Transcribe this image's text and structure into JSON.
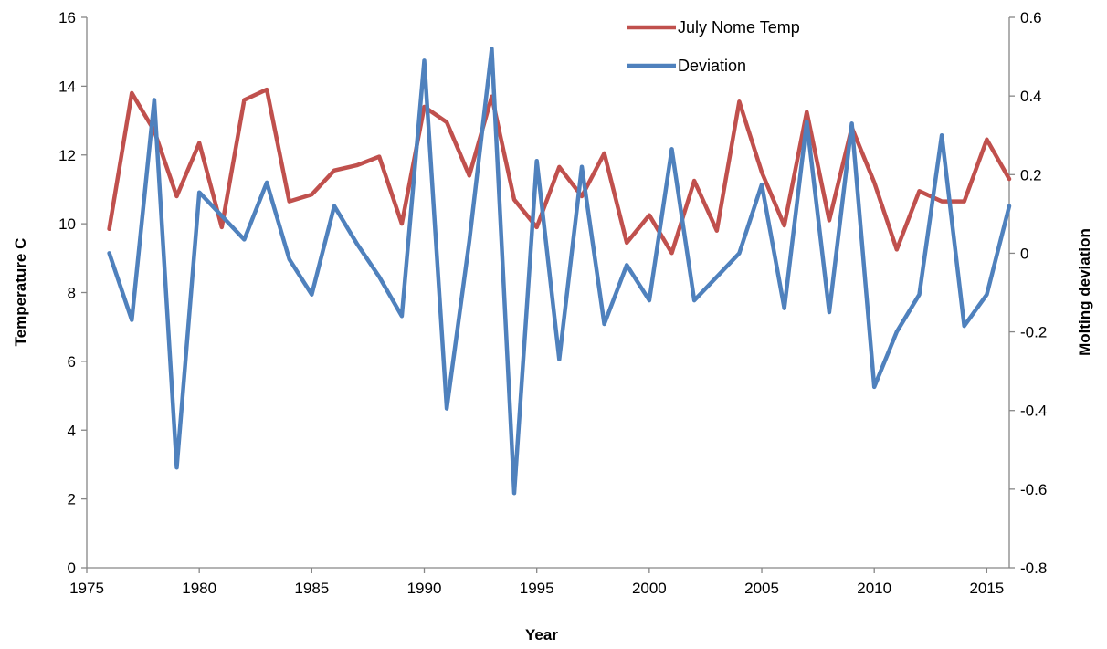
{
  "chart_data": {
    "type": "line",
    "xlabel": "Year",
    "ylabel_left": "Temperature C",
    "ylabel_right": "Molting deviation",
    "xlim": [
      1975,
      2016
    ],
    "ylim_left": [
      0,
      16
    ],
    "ylim_right": [
      -0.8,
      0.6
    ],
    "x_ticks": [
      1975,
      1980,
      1985,
      1990,
      1995,
      2000,
      2005,
      2010,
      2015
    ],
    "y_ticks_left": [
      0,
      2,
      4,
      6,
      8,
      10,
      12,
      14,
      16
    ],
    "y_ticks_right": [
      -0.8,
      -0.6,
      -0.4,
      -0.2,
      0,
      0.2,
      0.4,
      0.6
    ],
    "y_tick_labels_right": [
      "-0.8",
      "-0.6",
      "-0.4",
      "-0.2",
      "0",
      "0.2",
      "0.4",
      "0.6"
    ],
    "grid": false,
    "legend_position": "top-right",
    "series": [
      {
        "name": "July Nome Temp",
        "axis": "left",
        "color": "#c0504d",
        "x": [
          1976,
          1977,
          1978,
          1979,
          1980,
          1981,
          1982,
          1983,
          1984,
          1985,
          1986,
          1987,
          1988,
          1989,
          1990,
          1991,
          1992,
          1993,
          1994,
          1995,
          1996,
          1997,
          1998,
          1999,
          2000,
          2001,
          2002,
          2003,
          2004,
          2005,
          2006,
          2007,
          2008,
          2009,
          2010,
          2011,
          2012,
          2013,
          2014,
          2015,
          2016
        ],
        "values": [
          9.85,
          13.8,
          12.7,
          10.8,
          12.35,
          9.9,
          13.6,
          13.9,
          10.65,
          10.85,
          11.55,
          11.7,
          11.95,
          10.0,
          13.4,
          12.95,
          11.4,
          13.7,
          10.7,
          9.9,
          11.65,
          10.8,
          12.05,
          9.45,
          10.25,
          9.15,
          11.25,
          9.8,
          13.55,
          11.5,
          9.95,
          13.25,
          10.1,
          12.8,
          11.2,
          9.25,
          10.95,
          10.65,
          10.65,
          12.45,
          11.3
        ]
      },
      {
        "name": "Deviation",
        "axis": "right",
        "color": "#4f81bd",
        "x": [
          1976,
          1977,
          1978,
          1979,
          1980,
          1981,
          1982,
          1983,
          1984,
          1985,
          1986,
          1987,
          1988,
          1989,
          1990,
          1991,
          1992,
          1993,
          1994,
          1995,
          1996,
          1997,
          1998,
          1999,
          2000,
          2001,
          2002,
          2003,
          2004,
          2005,
          2006,
          2007,
          2008,
          2009,
          2010,
          2011,
          2012,
          2013,
          2014,
          2015,
          2016
        ],
        "values": [
          0.0,
          -0.17,
          0.39,
          -0.545,
          0.155,
          0.095,
          0.035,
          0.18,
          -0.015,
          -0.105,
          0.12,
          0.025,
          -0.06,
          -0.16,
          0.49,
          -0.395,
          0.03,
          0.52,
          -0.61,
          0.235,
          -0.27,
          0.22,
          -0.18,
          -0.03,
          -0.12,
          0.265,
          -0.12,
          -0.06,
          0.0,
          0.175,
          -0.14,
          0.335,
          -0.15,
          0.33,
          -0.34,
          -0.2,
          -0.105,
          0.3,
          -0.185,
          -0.105,
          0.12
        ]
      }
    ]
  }
}
